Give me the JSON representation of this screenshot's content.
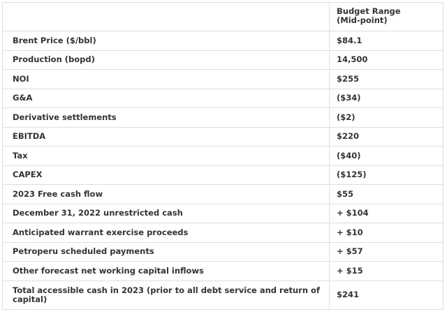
{
  "table": {
    "header": [
      "Budget Range (Mid-point)"
    ],
    "rows": [
      [
        "Brent Price ($/bbl)",
        "$84.1"
      ],
      [
        "Production (bopd)",
        "14,500"
      ],
      [
        "NOI",
        "$255"
      ],
      [
        "G&A",
        "($34)"
      ],
      [
        "Derivative settlements",
        "($2)"
      ],
      [
        "EBITDA",
        "$220"
      ],
      [
        "Tax",
        "($40)"
      ],
      [
        "CAPEX",
        "($125)"
      ],
      [
        "2023 Free cash flow",
        "$55"
      ],
      [
        "December 31, 2022 unrestricted cash",
        "+ $104"
      ],
      [
        "Anticipated warrant exercise proceeds",
        "+ $10"
      ],
      [
        "Petroperu scheduled payments",
        "+ $57"
      ],
      [
        "Other forecast net working capital inflows",
        "+ $15"
      ],
      [
        "Total accessible cash in 2023 (prior to all debt service and return of capital)",
        "$241"
      ]
    ]
  }
}
